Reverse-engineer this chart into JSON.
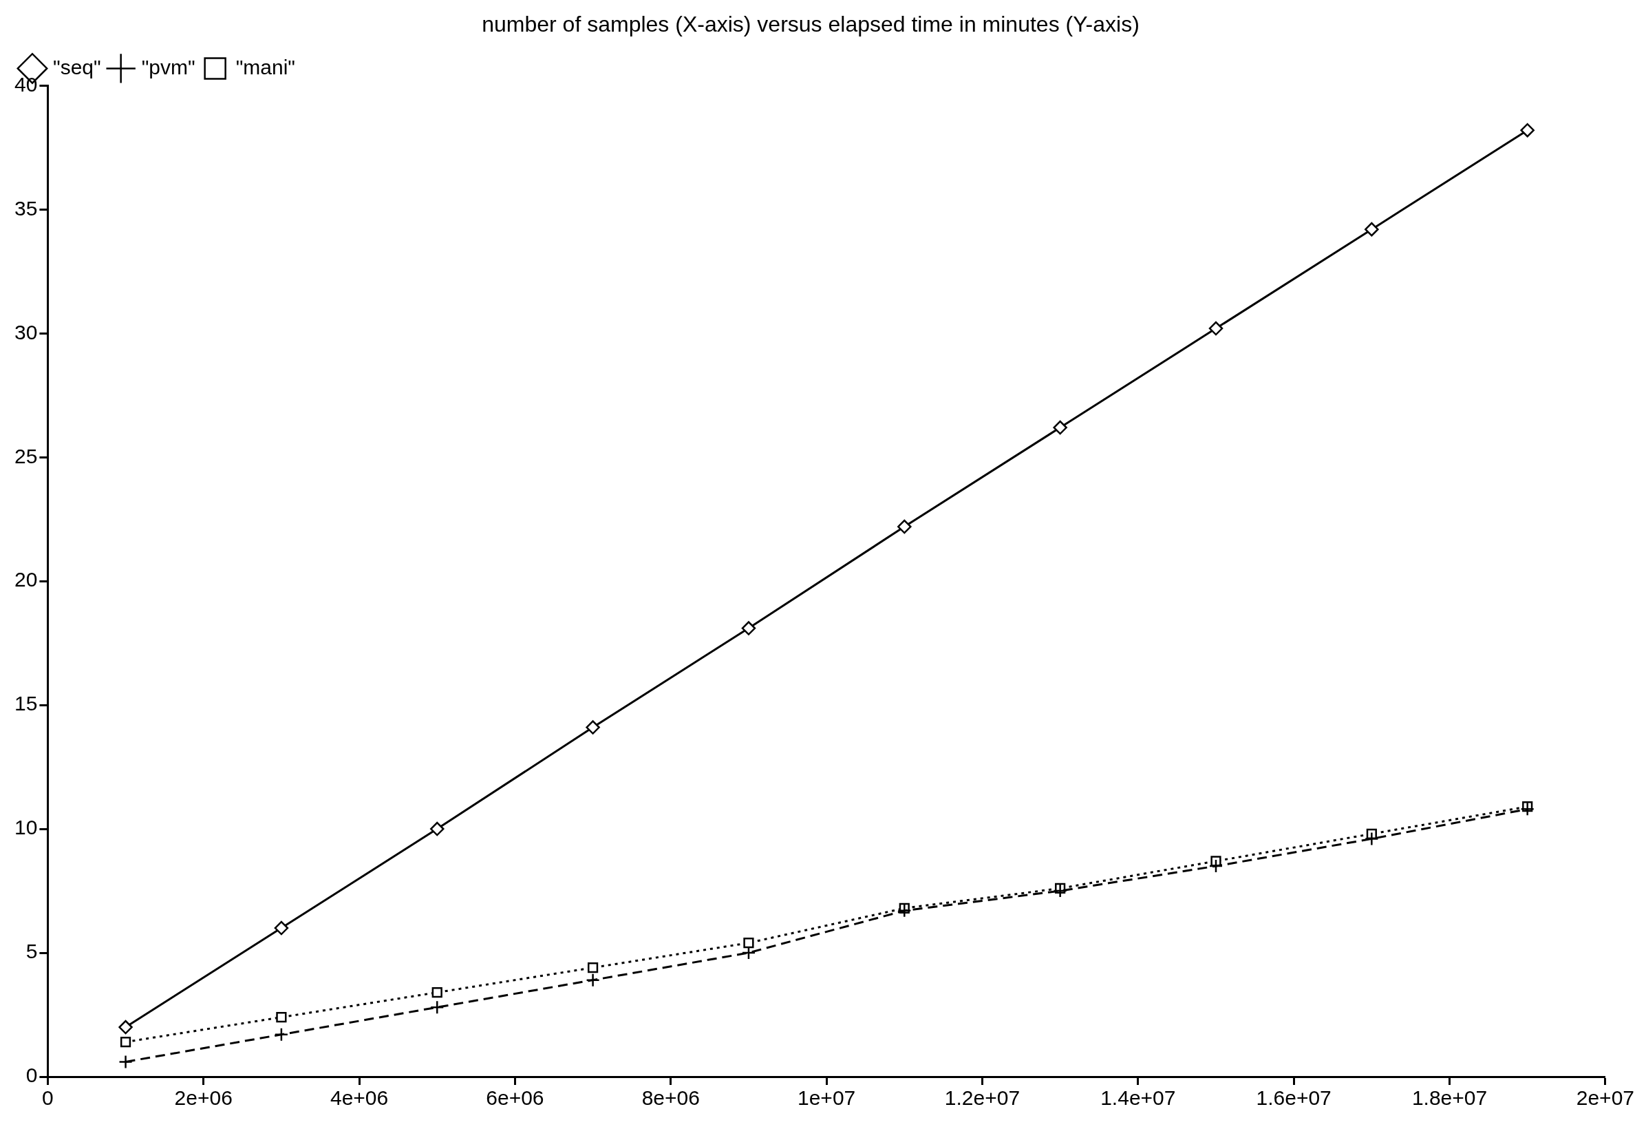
{
  "chart_data": {
    "type": "line",
    "title": "number of samples (X-axis) versus elapsed time in minutes (Y-axis)",
    "x": [
      1000000,
      3000000,
      5000000,
      7000000,
      9000000,
      11000000,
      13000000,
      15000000,
      17000000,
      19000000
    ],
    "series": [
      {
        "name": "\"seq\"",
        "color": "#000000",
        "marker": "diamond",
        "line_style": "solid",
        "values": [
          2.0,
          6.0,
          10.0,
          14.1,
          18.1,
          22.2,
          26.2,
          30.2,
          34.2,
          38.2
        ]
      },
      {
        "name": "\"pvm\"",
        "color": "#000000",
        "marker": "cross",
        "line_style": "dashed",
        "values": [
          0.6,
          1.7,
          2.8,
          3.9,
          5.0,
          6.7,
          7.5,
          8.5,
          9.6,
          10.8
        ]
      },
      {
        "name": "\"mani\"",
        "color": "#000000",
        "marker": "square",
        "line_style": "dotted",
        "values": [
          1.4,
          2.4,
          3.4,
          4.4,
          5.4,
          6.8,
          7.6,
          8.7,
          9.8,
          10.9
        ]
      }
    ],
    "xlim": [
      0,
      20000000
    ],
    "xticks": [
      0,
      {
        "value": 2000000,
        "label": "2e+06"
      },
      {
        "value": 4000000,
        "label": "4e+06"
      },
      {
        "value": 6000000,
        "label": "6e+06"
      },
      {
        "value": 8000000,
        "label": "8e+06"
      },
      {
        "value": 10000000,
        "label": "1e+07"
      },
      {
        "value": 12000000,
        "label": "1.2e+07"
      },
      {
        "value": 14000000,
        "label": "1.4e+07"
      },
      {
        "value": 16000000,
        "label": "1.6e+07"
      },
      {
        "value": 18000000,
        "label": "1.8e+07"
      },
      {
        "value": 20000000,
        "label": "2e+07"
      }
    ],
    "ylim": [
      0,
      40
    ],
    "yticks": [
      0,
      5,
      10,
      15,
      20,
      25,
      30,
      35,
      40
    ],
    "grid": false,
    "legend": "top left"
  }
}
